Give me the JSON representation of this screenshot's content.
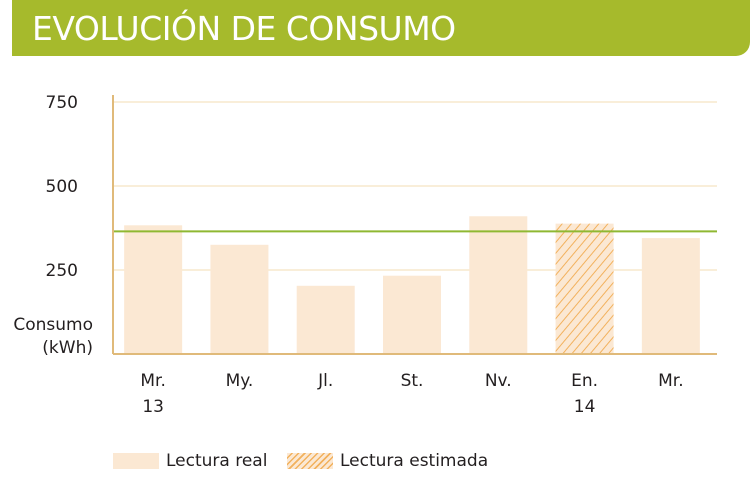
{
  "header": {
    "title": "EVOLUCIÓN DE CONSUMO"
  },
  "chart_data": {
    "type": "bar",
    "title": "EVOLUCIÓN DE CONSUMO",
    "ylabel_lines": [
      "Consumo",
      "(kWh)"
    ],
    "xlabel": "",
    "ylim": [
      0,
      750
    ],
    "yticks": [
      250,
      500,
      750
    ],
    "grid": true,
    "categories": [
      {
        "label": "Mr.",
        "year": "13"
      },
      {
        "label": "My.",
        "year": ""
      },
      {
        "label": "Jl.",
        "year": ""
      },
      {
        "label": "St.",
        "year": ""
      },
      {
        "label": "Nv.",
        "year": ""
      },
      {
        "label": "En.",
        "year": "14"
      },
      {
        "label": "Mr.",
        "year": ""
      }
    ],
    "values": [
      383,
      325,
      203,
      233,
      410,
      388,
      345
    ],
    "reading_type": [
      "real",
      "real",
      "real",
      "real",
      "real",
      "estimated",
      "real"
    ],
    "reference_line": 365,
    "colors": {
      "bar_fill": "#fbe8d3",
      "hatch": "#f2b15d",
      "axis": "#e0ba7a",
      "grid": "#f3deb3",
      "reference_line": "#8fb832"
    },
    "legend": [
      {
        "label": "Lectura real",
        "style": "real"
      },
      {
        "label": "Lectura estimada",
        "style": "estimated"
      }
    ]
  }
}
